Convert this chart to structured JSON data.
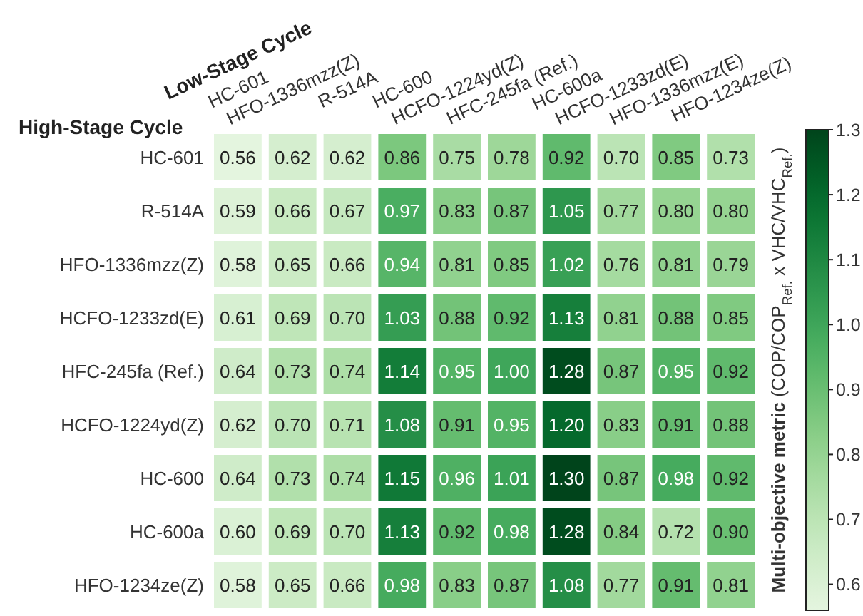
{
  "chart_data": {
    "type": "heatmap",
    "xlabel": "Low-Stage Cycle",
    "ylabel": "High-Stage Cycle",
    "clabel": "Multi-objective metric (COP/COP$_{Ref.}$ x VHC/VHC$_{Ref.}$)",
    "categories": [
      "HC-601",
      "HFO-1336mzz(Z)",
      "R-514A",
      "HC-600",
      "HCFO-1224yd(Z)",
      "HFC-245fa (Ref.)",
      "HC-600a",
      "HCFO-1233zd(E)",
      "HFO-1336mzz(E)",
      "HFO-1234ze(Z)"
    ],
    "y_categories": [
      "HC-601",
      "R-514A",
      "HFO-1336mzz(Z)",
      "HCFO-1233zd(E)",
      "HFC-245fa (Ref.)",
      "HCFO-1224yd(Z)",
      "HC-600",
      "HC-600a",
      "HFO-1234ze(Z)"
    ],
    "cells": [
      [
        0.56,
        0.62,
        0.62,
        0.86,
        0.75,
        0.78,
        0.92,
        0.7,
        0.85,
        0.73
      ],
      [
        0.59,
        0.66,
        0.67,
        0.97,
        0.83,
        0.87,
        1.05,
        0.77,
        0.8,
        0.8
      ],
      [
        0.58,
        0.65,
        0.66,
        0.94,
        0.81,
        0.85,
        1.02,
        0.76,
        0.81,
        0.79
      ],
      [
        0.61,
        0.69,
        0.7,
        1.03,
        0.88,
        0.92,
        1.13,
        0.81,
        0.88,
        0.85
      ],
      [
        0.64,
        0.73,
        0.74,
        1.14,
        0.95,
        1.0,
        1.28,
        0.87,
        0.95,
        0.92
      ],
      [
        0.62,
        0.7,
        0.71,
        1.08,
        0.91,
        0.95,
        1.2,
        0.83,
        0.91,
        0.88
      ],
      [
        0.64,
        0.73,
        0.74,
        1.15,
        0.96,
        1.01,
        1.3,
        0.87,
        0.98,
        0.92
      ],
      [
        0.6,
        0.69,
        0.7,
        1.13,
        0.92,
        0.98,
        1.28,
        0.84,
        0.72,
        0.9
      ],
      [
        0.58,
        0.65,
        0.66,
        0.98,
        0.83,
        0.87,
        1.08,
        0.77,
        0.91,
        0.81
      ]
    ],
    "cell_labels": [
      [
        "0.56",
        "0.62",
        "0.62",
        "0.86",
        "0.75",
        "0.78",
        "0.92",
        "0.70",
        "0.85",
        "0.73"
      ],
      [
        "0.59",
        "0.66",
        "0.67",
        "0.97",
        "0.83",
        "0.87",
        "1.05",
        "0.77",
        "0.80",
        "0.80"
      ],
      [
        "0.58",
        "0.65",
        "0.66",
        "0.94",
        "0.81",
        "0.85",
        "1.02",
        "0.76",
        "0.81",
        "0.79"
      ],
      [
        "0.61",
        "0.69",
        "0.70",
        "1.03",
        "0.88",
        "0.92",
        "1.13",
        "0.81",
        "0.88",
        "0.85"
      ],
      [
        "0.64",
        "0.73",
        "0.74",
        "1.14",
        "0.95",
        "1.00",
        "1.28",
        "0.87",
        "0.95",
        "0.92"
      ],
      [
        "0.62",
        "0.70",
        "0.71",
        "1.08",
        "0.91",
        "0.95",
        "1.20",
        "0.83",
        "0.91",
        "0.88"
      ],
      [
        "0.64",
        "0.73",
        "0.74",
        "1.15",
        "0.96",
        "1.01",
        "1.30",
        "0.87",
        "0.98",
        "0.92"
      ],
      [
        "0.60",
        "0.69",
        "0.70",
        "1.13",
        "0.92",
        "0.98",
        "1.28",
        "0.84",
        "0.72",
        "0.90"
      ],
      [
        "0.58",
        "0.65",
        "0.66",
        "0.98",
        "0.83",
        "0.87",
        "1.08",
        "0.77",
        "0.91",
        "0.81"
      ]
    ],
    "clim": [
      0.56,
      1.3
    ],
    "cticks": [
      0.6,
      0.7,
      0.8,
      0.9,
      {
        "value": 1,
        "label": "1.0"
      },
      1.1,
      1.2,
      1.3
    ]
  }
}
